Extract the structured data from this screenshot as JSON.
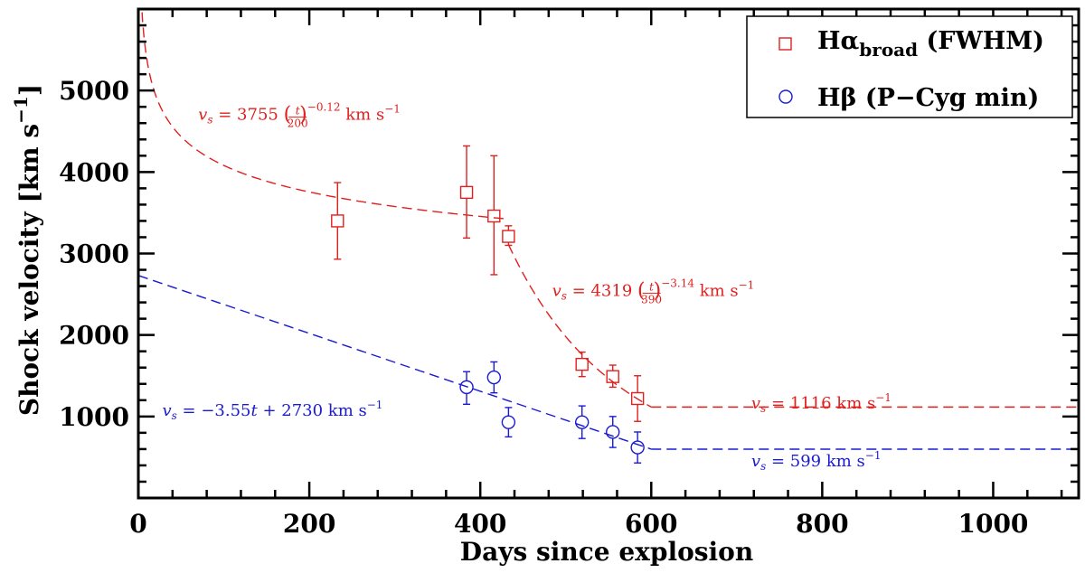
{
  "chart_data": {
    "type": "scatter",
    "xlabel": "Days since explosion",
    "ylabel_main": "Shock velocity [km s",
    "ylabel_exp": "−1",
    "ylabel_close": "]",
    "xlim": [
      0,
      1100
    ],
    "ylim": [
      0,
      6000
    ],
    "x_major_ticks": [
      0,
      200,
      400,
      600,
      800,
      1000
    ],
    "y_major_ticks": [
      1000,
      2000,
      3000,
      4000,
      5000
    ],
    "x_minor_step": 40,
    "y_minor_step": 200,
    "colors": {
      "red": "#e0201e",
      "blue": "#1a1ad4",
      "axis": "#000000"
    },
    "series": [
      {
        "name": "Hα broad (FWHM)",
        "legend_main": "Hα",
        "legend_sub": "broad",
        "legend_tail": " (FWHM)",
        "marker": "square",
        "color": "#e0201e",
        "points": [
          {
            "x": 233,
            "y": 3400,
            "err_lo": 470,
            "err_hi": 470
          },
          {
            "x": 384,
            "y": 3750,
            "err_lo": 560,
            "err_hi": 570
          },
          {
            "x": 416,
            "y": 3460,
            "err_lo": 720,
            "err_hi": 740
          },
          {
            "x": 433,
            "y": 3210,
            "err_lo": 110,
            "err_hi": 130
          },
          {
            "x": 519,
            "y": 1640,
            "err_lo": 150,
            "err_hi": 150
          },
          {
            "x": 555,
            "y": 1490,
            "err_lo": 130,
            "err_hi": 140
          },
          {
            "x": 584,
            "y": 1220,
            "err_lo": 280,
            "err_hi": 280
          }
        ]
      },
      {
        "name": "Hβ (P-Cyg min)",
        "legend_main": "Hβ (P−Cyg min)",
        "marker": "circle",
        "color": "#1a1ad4",
        "points": [
          {
            "x": 384,
            "y": 1360,
            "err_lo": 210,
            "err_hi": 190
          },
          {
            "x": 416,
            "y": 1480,
            "err_lo": 190,
            "err_hi": 190
          },
          {
            "x": 433,
            "y": 930,
            "err_lo": 180,
            "err_hi": 180
          },
          {
            "x": 519,
            "y": 930,
            "err_lo": 200,
            "err_hi": 200
          },
          {
            "x": 555,
            "y": 810,
            "err_lo": 190,
            "err_hi": 190
          },
          {
            "x": 584,
            "y": 620,
            "err_lo": 190,
            "err_hi": 190
          }
        ]
      }
    ],
    "fits": [
      {
        "name": "red-early-powerlaw",
        "color": "#e0201e",
        "model": "powerlaw",
        "A": 3755,
        "t0": 200,
        "p": -0.12,
        "x_range": [
          1,
          433
        ]
      },
      {
        "name": "red-late-powerlaw",
        "color": "#e0201e",
        "model": "powerlaw",
        "A": 4319,
        "t0": 390,
        "p": -3.14,
        "x_range": [
          433,
          600
        ]
      },
      {
        "name": "red-constant",
        "color": "#e0201e",
        "model": "constant",
        "value": 1116,
        "x_range": [
          600,
          1100
        ]
      },
      {
        "name": "blue-linear",
        "color": "#1a1ad4",
        "model": "linear",
        "slope": -3.55,
        "intercept": 2730,
        "x_range": [
          0,
          600
        ]
      },
      {
        "name": "blue-constant",
        "color": "#1a1ad4",
        "model": "constant",
        "value": 599,
        "x_range": [
          600,
          1100
        ]
      }
    ],
    "annotations": [
      {
        "id": "fit-red-early",
        "color": "#e0201e",
        "data_x": 70,
        "data_y": 4640,
        "lhs": "v",
        "sub": "s",
        "eq": " = 3755 ",
        "frac_num": "t",
        "frac_den": "200",
        "exp": "−0.12",
        "units": " km s",
        "units_exp": "−1"
      },
      {
        "id": "fit-red-late",
        "color": "#e0201e",
        "data_x": 484,
        "data_y": 2480,
        "lhs": "v",
        "sub": "s",
        "eq": " = 4319 ",
        "frac_num": "t",
        "frac_den": "390",
        "exp": "−3.14",
        "units": " km s",
        "units_exp": "−1"
      },
      {
        "id": "fit-red-const",
        "color": "#e0201e",
        "data_x": 717,
        "data_y": 1100,
        "lhs": "v",
        "sub": "s",
        "eq": " = 1116 km s",
        "units_exp": "−1"
      },
      {
        "id": "fit-blue-linear",
        "color": "#1a1ad4",
        "data_x": 28,
        "data_y": 1010,
        "lhs": "v",
        "sub": "s",
        "eq": " = −3.55",
        "tvar": "t",
        "tail": " + 2730 km s",
        "units_exp": "−1"
      },
      {
        "id": "fit-blue-const",
        "color": "#1a1ad4",
        "data_x": 717,
        "data_y": 390,
        "lhs": "v",
        "sub": "s",
        "eq": " = 599 km s",
        "units_exp": "−1"
      }
    ]
  }
}
